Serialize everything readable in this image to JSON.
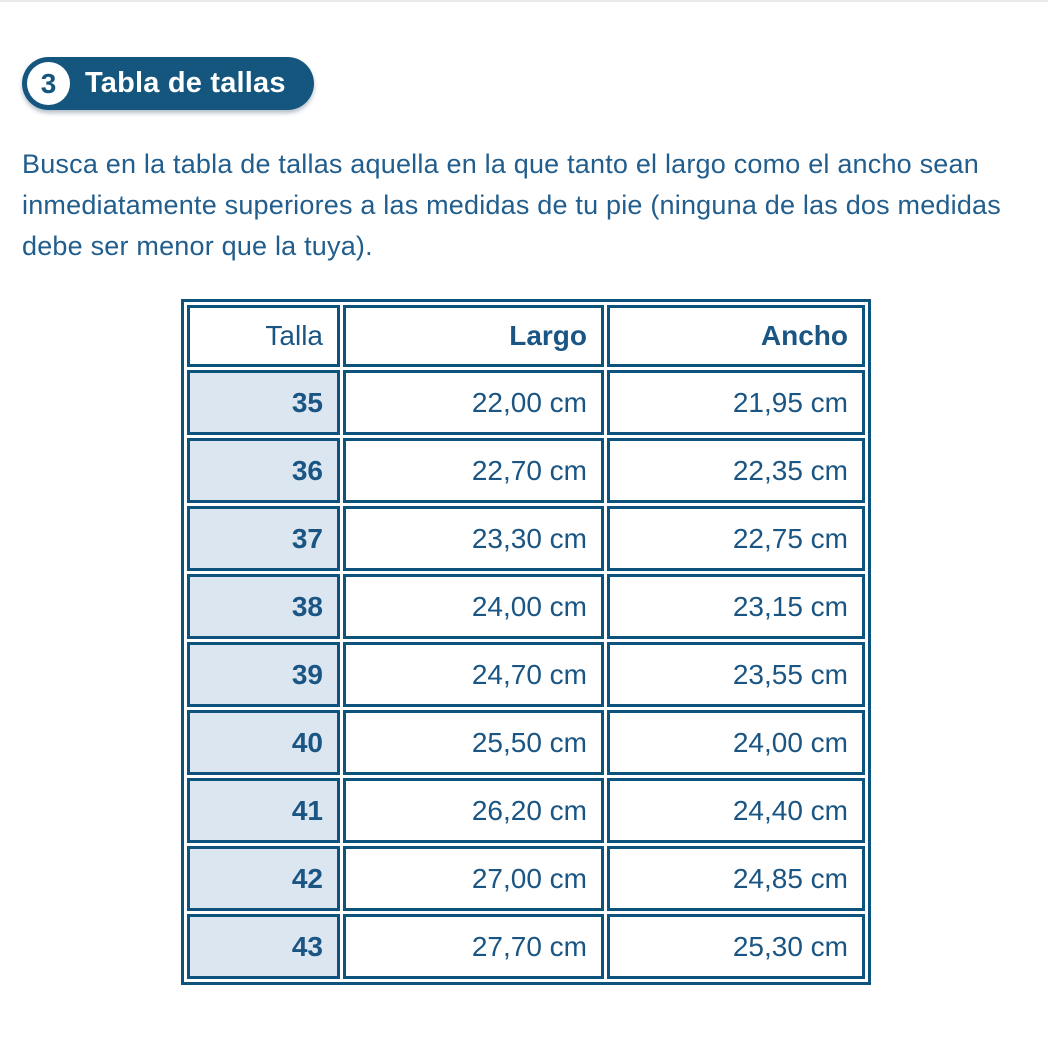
{
  "badge": {
    "number": "3",
    "label": "Tabla de tallas",
    "bg_color": "#14567e",
    "text_color": "#ffffff"
  },
  "intro": {
    "text": "Busca en la tabla de tallas aquella en la que tanto el largo como el ancho sean inmediatamente superiores a las medidas de tu pie (ninguna de las dos medidas debe ser menor que la tuya)."
  },
  "colors": {
    "border_blue": "#0e527e",
    "text_blue": "#1a5583",
    "paragraph_blue": "#215e8d",
    "talla_column_bg": "#dbe6f1",
    "page_bg": "#ffffff"
  },
  "chart_data": {
    "type": "table",
    "title": "Tabla de tallas",
    "headers": [
      "Talla",
      "Largo",
      "Ancho"
    ],
    "rows": [
      {
        "talla": "35",
        "largo": "22,00 cm",
        "ancho": "21,95 cm"
      },
      {
        "talla": "36",
        "largo": "22,70 cm",
        "ancho": "22,35 cm"
      },
      {
        "talla": "37",
        "largo": "23,30 cm",
        "ancho": "22,75 cm"
      },
      {
        "talla": "38",
        "largo": "24,00 cm",
        "ancho": "23,15 cm"
      },
      {
        "talla": "39",
        "largo": "24,70 cm",
        "ancho": "23,55 cm"
      },
      {
        "talla": "40",
        "largo": "25,50 cm",
        "ancho": "24,00 cm"
      },
      {
        "talla": "41",
        "largo": "26,20 cm",
        "ancho": "24,40 cm"
      },
      {
        "talla": "42",
        "largo": "27,00 cm",
        "ancho": "24,85 cm"
      },
      {
        "talla": "43",
        "largo": "27,70 cm",
        "ancho": "25,30 cm"
      }
    ]
  }
}
